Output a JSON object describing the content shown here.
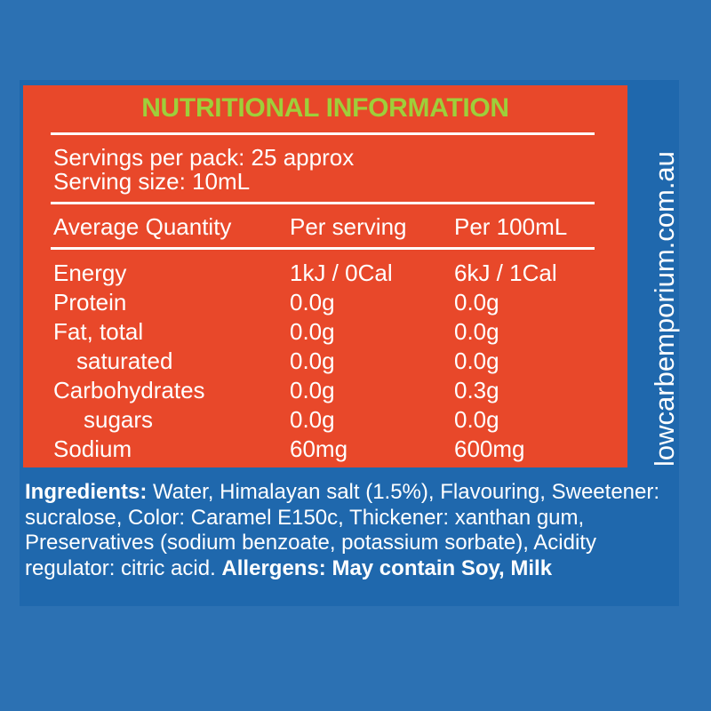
{
  "colors": {
    "background": "#2c71b3",
    "panel": "#1f68ad",
    "nutrition_box": "#e8482a",
    "title": "#9ecf3a",
    "text": "#ffffff"
  },
  "nutrition": {
    "title": "NUTRITIONAL INFORMATION",
    "servings_per_pack": "Servings per pack: 25 approx",
    "serving_size": "Serving size: 10mL",
    "headers": [
      "Average Quantity",
      "Per serving",
      "Per 100mL"
    ],
    "rows": [
      {
        "name": "Energy",
        "per_serving": "1kJ / 0Cal",
        "per_100ml": "6kJ / 1Cal"
      },
      {
        "name": "Protein",
        "per_serving": "0.0g",
        "per_100ml": "0.0g"
      },
      {
        "name": "Fat, total",
        "per_serving": "0.0g",
        "per_100ml": "0.0g"
      },
      {
        "name": "saturated",
        "per_serving": "0.0g",
        "per_100ml": "0.0g"
      },
      {
        "name": "Carbohydrates",
        "per_serving": "0.0g",
        "per_100ml": "0.3g"
      },
      {
        "name": "sugars",
        "per_serving": "0.0g",
        "per_100ml": "0.0g"
      },
      {
        "name": "Sodium",
        "per_serving": "60mg",
        "per_100ml": "600mg"
      }
    ]
  },
  "side_text": "lowcarbemporium.com.au",
  "ingredients": {
    "label": "Ingredients:",
    "text": " Water, Himalayan salt (1.5%), Flavouring, Sweetener: sucralose, Color: Caramel E150c, Thickener: xanthan gum, Preservatives (sodium benzoate, potassium sorbate), Acidity regulator: citric acid. ",
    "allergens": "Allergens: May contain Soy, Milk"
  }
}
